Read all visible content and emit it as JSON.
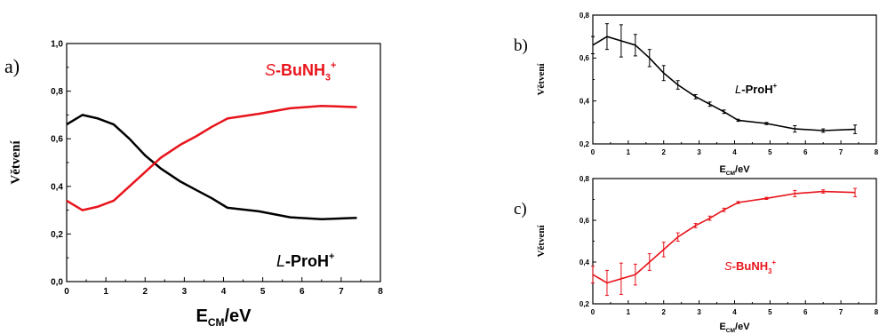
{
  "colors": {
    "black_series": "#000000",
    "red_series": "#e8141b",
    "axis": "#000000"
  },
  "chart_data": [
    {
      "panel": "a)",
      "type": "line",
      "ylabel": "Větvení",
      "xlabel_main": "E",
      "xlabel_sub": "CM",
      "xlabel_unit": "/eV",
      "xlim": [
        0,
        8
      ],
      "ylim": [
        0,
        1.0
      ],
      "xticks": [
        0,
        1,
        2,
        3,
        4,
        5,
        6,
        7,
        8
      ],
      "yticks": [
        0,
        0.2,
        0.4,
        0.6,
        0.8,
        1.0
      ],
      "yticklabels": [
        "0,0",
        "0,2",
        "0,4",
        "0,6",
        "0,8",
        "1,0"
      ],
      "series": [
        {
          "name": "L-ProH+",
          "color": "#000000",
          "label_prefix": "L",
          "label_main": "-ProH",
          "label_sup": "+",
          "x": [
            0,
            0.4,
            0.8,
            1.2,
            1.6,
            2.0,
            2.4,
            2.9,
            3.3,
            3.7,
            4.1,
            4.9,
            5.7,
            6.5,
            7.4
          ],
          "y": [
            0.66,
            0.7,
            0.685,
            0.66,
            0.6,
            0.53,
            0.475,
            0.42,
            0.385,
            0.35,
            0.31,
            0.295,
            0.27,
            0.262,
            0.268
          ]
        },
        {
          "name": "S-BuNH3+",
          "color": "#e8141b",
          "label_prefix": "S",
          "label_main": "-BuNH",
          "label_sub": "3",
          "label_sup": "+",
          "x": [
            0,
            0.4,
            0.8,
            1.2,
            1.6,
            2.0,
            2.4,
            2.9,
            3.3,
            3.7,
            4.1,
            4.9,
            5.7,
            6.5,
            7.4
          ],
          "y": [
            0.34,
            0.3,
            0.315,
            0.34,
            0.4,
            0.46,
            0.52,
            0.575,
            0.61,
            0.65,
            0.685,
            0.705,
            0.728,
            0.738,
            0.733
          ]
        }
      ]
    },
    {
      "panel": "b)",
      "type": "line",
      "ylabel": "Větvení",
      "xlabel_main": "E",
      "xlabel_sub": "CM",
      "xlabel_unit": "/eV",
      "xlim": [
        0,
        8
      ],
      "ylim": [
        0.2,
        0.8
      ],
      "xticks": [
        0,
        1,
        2,
        3,
        4,
        5,
        6,
        7,
        8
      ],
      "yticks": [
        0.2,
        0.4,
        0.6,
        0.8
      ],
      "yticklabels": [
        "0,2",
        "0,4",
        "0,6",
        "0,8"
      ],
      "series": [
        {
          "name": "L-ProH+",
          "color": "#000000",
          "label_prefix": "L",
          "label_main": "-ProH",
          "label_sup": "+",
          "x": [
            0,
            0.4,
            0.8,
            1.2,
            1.6,
            2.0,
            2.4,
            2.9,
            3.3,
            3.7,
            4.1,
            4.9,
            5.7,
            6.5,
            7.4
          ],
          "y": [
            0.66,
            0.7,
            0.68,
            0.66,
            0.6,
            0.53,
            0.475,
            0.42,
            0.385,
            0.35,
            0.31,
            0.295,
            0.27,
            0.262,
            0.268
          ],
          "err": [
            0.04,
            0.06,
            0.075,
            0.05,
            0.04,
            0.035,
            0.02,
            0.01,
            0.01,
            0.008,
            0.005,
            0.005,
            0.015,
            0.008,
            0.02
          ]
        }
      ]
    },
    {
      "panel": "c)",
      "type": "line",
      "ylabel": "Větvení",
      "xlabel_main": "E",
      "xlabel_sub": "CM",
      "xlabel_unit": "/eV",
      "xlim": [
        0,
        8
      ],
      "ylim": [
        0.2,
        0.8
      ],
      "xticks": [
        0,
        1,
        2,
        3,
        4,
        5,
        6,
        7,
        8
      ],
      "yticks": [
        0.2,
        0.4,
        0.6,
        0.8
      ],
      "yticklabels": [
        "0,2",
        "0,4",
        "0,6",
        "0,8"
      ],
      "series": [
        {
          "name": "S-BuNH3+",
          "color": "#e8141b",
          "label_prefix": "S",
          "label_main": "-BuNH",
          "label_sub": "3",
          "label_sup": "+",
          "x": [
            0,
            0.4,
            0.8,
            1.2,
            1.6,
            2.0,
            2.4,
            2.9,
            3.3,
            3.7,
            4.1,
            4.9,
            5.7,
            6.5,
            7.4
          ],
          "y": [
            0.34,
            0.3,
            0.32,
            0.34,
            0.4,
            0.46,
            0.52,
            0.575,
            0.61,
            0.65,
            0.685,
            0.705,
            0.728,
            0.738,
            0.733
          ],
          "err": [
            0.04,
            0.06,
            0.075,
            0.05,
            0.04,
            0.035,
            0.02,
            0.01,
            0.01,
            0.008,
            0.005,
            0.005,
            0.015,
            0.008,
            0.02
          ]
        }
      ]
    }
  ]
}
